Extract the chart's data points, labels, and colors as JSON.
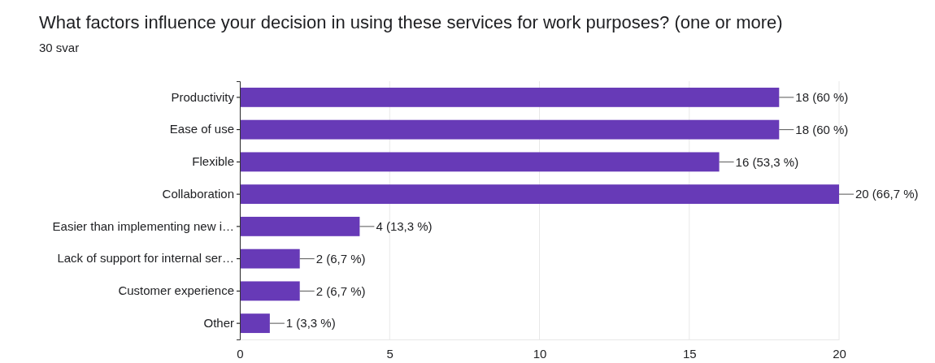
{
  "chart_data": {
    "type": "bar",
    "orientation": "horizontal",
    "title": "What factors influence your decision in using these services for work purposes? (one or more)",
    "subtitle": "30 svar",
    "categories": [
      "Productivity",
      "Ease of use",
      "Flexible",
      "Collaboration",
      "Easier than implementing new i…",
      "Lack of support for internal ser…",
      "Customer experience",
      "Other"
    ],
    "values": [
      18,
      18,
      16,
      20,
      4,
      2,
      2,
      1
    ],
    "value_labels": [
      "18 (60 %)",
      "18 (60 %)",
      "16 (53,3 %)",
      "20 (66,7 %)",
      "4 (13,3 %)",
      "2 (6,7 %)",
      "2 (6,7 %)",
      "1 (3,3 %)"
    ],
    "color": "#673ab7",
    "xlim": [
      0,
      20
    ],
    "xticks": [
      0,
      5,
      10,
      15,
      20
    ],
    "grid": "x"
  }
}
